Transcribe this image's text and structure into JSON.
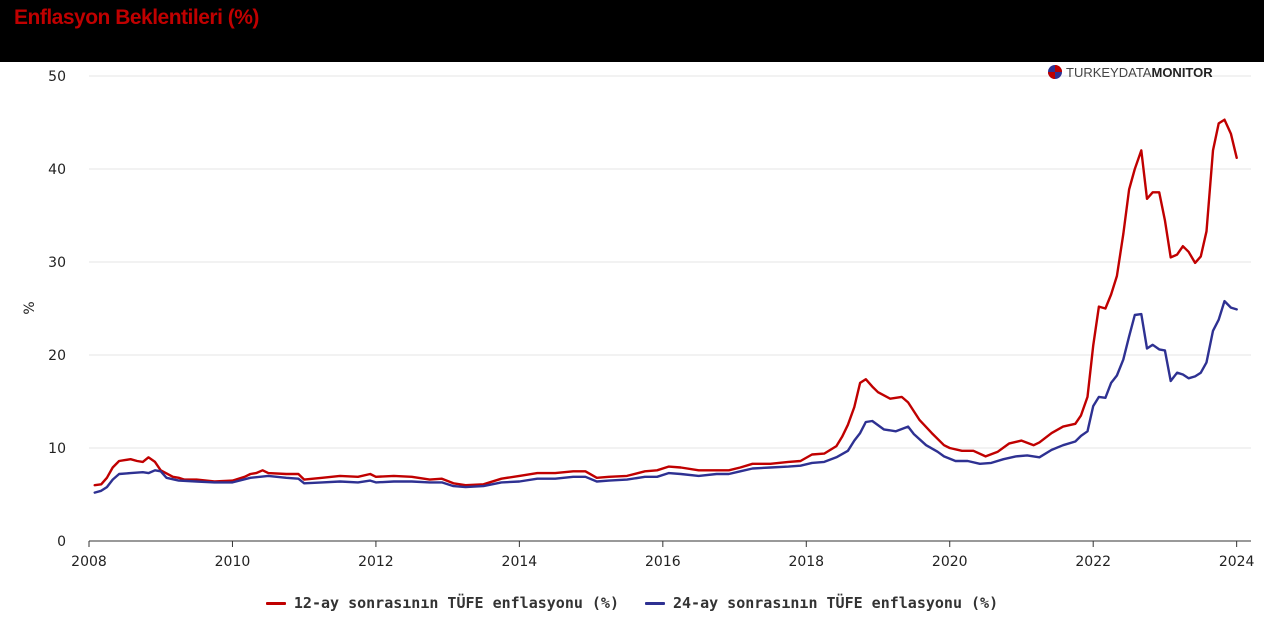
{
  "title": "Enflasyon Beklentileri (%)",
  "brand": {
    "part1": "TURKEY",
    "part2": "DATA",
    "part3": "MONITOR"
  },
  "colors": {
    "header_bg": "#000000",
    "title": "#c00000",
    "series_12": "#c00000",
    "series_24": "#2e3192",
    "grid": "#e6e6e6"
  },
  "chart_data": {
    "type": "line",
    "title": "Enflasyon Beklentileri (%)",
    "xlabel": "",
    "ylabel": "%",
    "xlim": [
      2008,
      2024.2
    ],
    "ylim": [
      0,
      50
    ],
    "x_ticks": [
      2008,
      2010,
      2012,
      2014,
      2016,
      2018,
      2020,
      2022,
      2024
    ],
    "y_ticks": [
      0,
      10,
      20,
      30,
      40,
      50
    ],
    "grid": true,
    "legend_position": "bottom",
    "series": [
      {
        "name": "12-ay sonrasının TÜFE enflasyonu (%)",
        "color": "#c00000",
        "points": [
          [
            2008.08,
            6.0
          ],
          [
            2008.17,
            6.1
          ],
          [
            2008.25,
            6.8
          ],
          [
            2008.33,
            7.9
          ],
          [
            2008.42,
            8.6
          ],
          [
            2008.5,
            8.7
          ],
          [
            2008.58,
            8.8
          ],
          [
            2008.67,
            8.6
          ],
          [
            2008.75,
            8.5
          ],
          [
            2008.83,
            9.0
          ],
          [
            2008.92,
            8.5
          ],
          [
            2009.0,
            7.6
          ],
          [
            2009.17,
            6.9
          ],
          [
            2009.25,
            6.8
          ],
          [
            2009.33,
            6.6
          ],
          [
            2009.5,
            6.6
          ],
          [
            2009.75,
            6.4
          ],
          [
            2010.0,
            6.5
          ],
          [
            2010.17,
            6.9
          ],
          [
            2010.25,
            7.2
          ],
          [
            2010.33,
            7.3
          ],
          [
            2010.42,
            7.6
          ],
          [
            2010.5,
            7.3
          ],
          [
            2010.75,
            7.2
          ],
          [
            2010.92,
            7.2
          ],
          [
            2011.0,
            6.6
          ],
          [
            2011.25,
            6.8
          ],
          [
            2011.5,
            7.0
          ],
          [
            2011.75,
            6.9
          ],
          [
            2011.92,
            7.2
          ],
          [
            2012.0,
            6.9
          ],
          [
            2012.25,
            7.0
          ],
          [
            2012.5,
            6.9
          ],
          [
            2012.75,
            6.6
          ],
          [
            2012.92,
            6.7
          ],
          [
            2013.08,
            6.2
          ],
          [
            2013.25,
            6.0
          ],
          [
            2013.5,
            6.1
          ],
          [
            2013.75,
            6.7
          ],
          [
            2014.0,
            7.0
          ],
          [
            2014.25,
            7.3
          ],
          [
            2014.5,
            7.3
          ],
          [
            2014.75,
            7.5
          ],
          [
            2014.92,
            7.5
          ],
          [
            2015.08,
            6.8
          ],
          [
            2015.25,
            6.9
          ],
          [
            2015.5,
            7.0
          ],
          [
            2015.75,
            7.5
          ],
          [
            2015.92,
            7.6
          ],
          [
            2016.08,
            8.0
          ],
          [
            2016.25,
            7.9
          ],
          [
            2016.5,
            7.6
          ],
          [
            2016.75,
            7.6
          ],
          [
            2016.92,
            7.6
          ],
          [
            2017.08,
            7.9
          ],
          [
            2017.25,
            8.3
          ],
          [
            2017.5,
            8.3
          ],
          [
            2017.75,
            8.5
          ],
          [
            2017.92,
            8.6
          ],
          [
            2018.08,
            9.3
          ],
          [
            2018.25,
            9.4
          ],
          [
            2018.42,
            10.2
          ],
          [
            2018.5,
            11.2
          ],
          [
            2018.58,
            12.5
          ],
          [
            2018.67,
            14.4
          ],
          [
            2018.75,
            17.0
          ],
          [
            2018.83,
            17.4
          ],
          [
            2018.92,
            16.6
          ],
          [
            2019.0,
            16.0
          ],
          [
            2019.17,
            15.3
          ],
          [
            2019.33,
            15.5
          ],
          [
            2019.42,
            14.9
          ],
          [
            2019.58,
            13.0
          ],
          [
            2019.75,
            11.6
          ],
          [
            2019.92,
            10.3
          ],
          [
            2020.0,
            10.0
          ],
          [
            2020.17,
            9.7
          ],
          [
            2020.33,
            9.7
          ],
          [
            2020.5,
            9.1
          ],
          [
            2020.67,
            9.6
          ],
          [
            2020.83,
            10.5
          ],
          [
            2021.0,
            10.8
          ],
          [
            2021.17,
            10.3
          ],
          [
            2021.25,
            10.6
          ],
          [
            2021.42,
            11.6
          ],
          [
            2021.58,
            12.3
          ],
          [
            2021.75,
            12.6
          ],
          [
            2021.83,
            13.5
          ],
          [
            2021.92,
            15.5
          ],
          [
            2022.0,
            21.0
          ],
          [
            2022.08,
            25.2
          ],
          [
            2022.17,
            25.0
          ],
          [
            2022.25,
            26.5
          ],
          [
            2022.33,
            28.5
          ],
          [
            2022.42,
            33.0
          ],
          [
            2022.5,
            37.8
          ],
          [
            2022.58,
            40.0
          ],
          [
            2022.67,
            42.0
          ],
          [
            2022.75,
            36.8
          ],
          [
            2022.83,
            37.5
          ],
          [
            2022.92,
            37.5
          ],
          [
            2023.0,
            34.5
          ],
          [
            2023.08,
            30.5
          ],
          [
            2023.17,
            30.8
          ],
          [
            2023.25,
            31.7
          ],
          [
            2023.33,
            31.1
          ],
          [
            2023.42,
            29.9
          ],
          [
            2023.5,
            30.6
          ],
          [
            2023.58,
            33.3
          ],
          [
            2023.67,
            42.0
          ],
          [
            2023.75,
            44.9
          ],
          [
            2023.83,
            45.3
          ],
          [
            2023.92,
            43.8
          ],
          [
            2024.0,
            41.2
          ]
        ]
      },
      {
        "name": "24-ay sonrasının TÜFE enflasyonu (%)",
        "color": "#2e3192",
        "points": [
          [
            2008.08,
            5.2
          ],
          [
            2008.17,
            5.4
          ],
          [
            2008.25,
            5.8
          ],
          [
            2008.33,
            6.6
          ],
          [
            2008.42,
            7.2
          ],
          [
            2008.58,
            7.3
          ],
          [
            2008.75,
            7.4
          ],
          [
            2008.83,
            7.3
          ],
          [
            2008.92,
            7.6
          ],
          [
            2009.0,
            7.5
          ],
          [
            2009.08,
            6.8
          ],
          [
            2009.25,
            6.5
          ],
          [
            2009.5,
            6.4
          ],
          [
            2009.75,
            6.3
          ],
          [
            2010.0,
            6.3
          ],
          [
            2010.25,
            6.8
          ],
          [
            2010.5,
            7.0
          ],
          [
            2010.75,
            6.8
          ],
          [
            2010.92,
            6.7
          ],
          [
            2011.0,
            6.2
          ],
          [
            2011.25,
            6.3
          ],
          [
            2011.5,
            6.4
          ],
          [
            2011.75,
            6.3
          ],
          [
            2011.92,
            6.5
          ],
          [
            2012.0,
            6.3
          ],
          [
            2012.25,
            6.4
          ],
          [
            2012.5,
            6.4
          ],
          [
            2012.75,
            6.3
          ],
          [
            2012.92,
            6.3
          ],
          [
            2013.08,
            5.9
          ],
          [
            2013.25,
            5.8
          ],
          [
            2013.5,
            5.9
          ],
          [
            2013.75,
            6.3
          ],
          [
            2014.0,
            6.4
          ],
          [
            2014.25,
            6.7
          ],
          [
            2014.5,
            6.7
          ],
          [
            2014.75,
            6.9
          ],
          [
            2014.92,
            6.9
          ],
          [
            2015.08,
            6.4
          ],
          [
            2015.25,
            6.5
          ],
          [
            2015.5,
            6.6
          ],
          [
            2015.75,
            6.9
          ],
          [
            2015.92,
            6.9
          ],
          [
            2016.08,
            7.3
          ],
          [
            2016.25,
            7.2
          ],
          [
            2016.5,
            7.0
          ],
          [
            2016.75,
            7.2
          ],
          [
            2016.92,
            7.2
          ],
          [
            2017.08,
            7.5
          ],
          [
            2017.25,
            7.8
          ],
          [
            2017.5,
            7.9
          ],
          [
            2017.75,
            8.0
          ],
          [
            2017.92,
            8.1
          ],
          [
            2018.08,
            8.4
          ],
          [
            2018.25,
            8.5
          ],
          [
            2018.42,
            9.0
          ],
          [
            2018.58,
            9.7
          ],
          [
            2018.67,
            10.8
          ],
          [
            2018.75,
            11.6
          ],
          [
            2018.83,
            12.8
          ],
          [
            2018.92,
            12.9
          ],
          [
            2019.08,
            12.0
          ],
          [
            2019.25,
            11.8
          ],
          [
            2019.42,
            12.3
          ],
          [
            2019.5,
            11.5
          ],
          [
            2019.67,
            10.3
          ],
          [
            2019.83,
            9.6
          ],
          [
            2019.92,
            9.1
          ],
          [
            2020.08,
            8.6
          ],
          [
            2020.25,
            8.6
          ],
          [
            2020.42,
            8.3
          ],
          [
            2020.58,
            8.4
          ],
          [
            2020.75,
            8.8
          ],
          [
            2020.92,
            9.1
          ],
          [
            2021.08,
            9.2
          ],
          [
            2021.25,
            9.0
          ],
          [
            2021.42,
            9.8
          ],
          [
            2021.58,
            10.3
          ],
          [
            2021.75,
            10.7
          ],
          [
            2021.83,
            11.3
          ],
          [
            2021.92,
            11.8
          ],
          [
            2022.0,
            14.5
          ],
          [
            2022.08,
            15.5
          ],
          [
            2022.17,
            15.4
          ],
          [
            2022.25,
            17.0
          ],
          [
            2022.33,
            17.8
          ],
          [
            2022.42,
            19.5
          ],
          [
            2022.5,
            22.0
          ],
          [
            2022.58,
            24.3
          ],
          [
            2022.67,
            24.4
          ],
          [
            2022.75,
            20.7
          ],
          [
            2022.83,
            21.1
          ],
          [
            2022.92,
            20.6
          ],
          [
            2023.0,
            20.5
          ],
          [
            2023.08,
            17.2
          ],
          [
            2023.17,
            18.1
          ],
          [
            2023.25,
            17.9
          ],
          [
            2023.33,
            17.5
          ],
          [
            2023.42,
            17.7
          ],
          [
            2023.5,
            18.1
          ],
          [
            2023.58,
            19.2
          ],
          [
            2023.67,
            22.6
          ],
          [
            2023.75,
            23.8
          ],
          [
            2023.83,
            25.8
          ],
          [
            2023.92,
            25.1
          ],
          [
            2024.0,
            24.9
          ]
        ]
      }
    ]
  }
}
